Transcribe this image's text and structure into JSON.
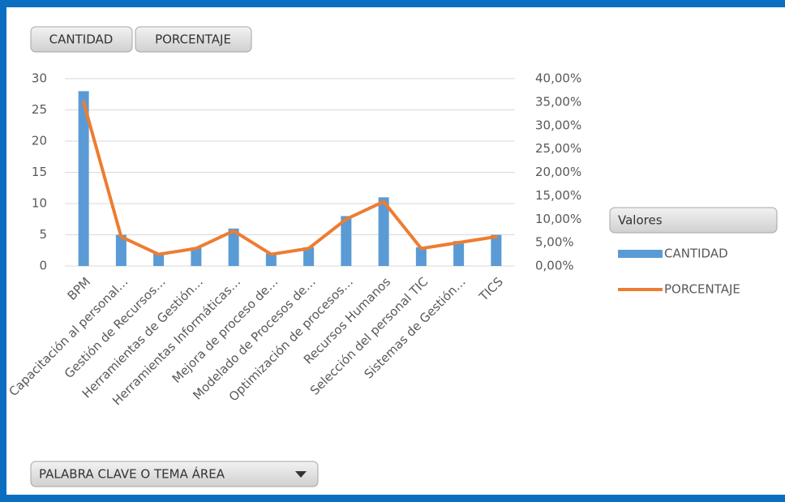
{
  "chart_data": {
    "type": "bar",
    "field_buttons": [
      "CANTIDAD",
      "PORCENTAJE"
    ],
    "axis_field_button": "PALABRA CLAVE O TEMA ÁREA",
    "legend_title": "Valores",
    "categories": [
      "BPM",
      "Capacitación al personal…",
      "Gestión de Recursos…",
      "Herramientas de Gestión…",
      "Herramientas Informáticas…",
      "Mejora de proceso de…",
      "Modelado de Procesos de…",
      "Optimización de procesos…",
      "Recursos Humanos",
      "Selección del personal TIC",
      "Sistemas de Gestión…",
      "TICS"
    ],
    "series": [
      {
        "name": "CANTIDAD",
        "color": "#5b9bd5",
        "values": [
          28,
          5,
          2,
          3,
          6,
          2,
          3,
          8,
          11,
          3,
          4,
          5
        ]
      },
      {
        "name": "PORCENTAJE",
        "type": "line",
        "axis": "y2",
        "color": "#ed7d31",
        "values": [
          35,
          6.25,
          2.5,
          3.75,
          7.5,
          2.5,
          3.75,
          10,
          13.75,
          3.75,
          5,
          6.25
        ]
      }
    ],
    "ylim": [
      0,
      30
    ],
    "yticks": [
      0,
      5,
      10,
      15,
      20,
      25,
      30
    ],
    "y2lim": [
      0,
      40
    ],
    "y2ticks": [
      {
        "value": 0,
        "label": "0,00%"
      },
      {
        "value": 5,
        "label": "5,00%"
      },
      {
        "value": 10,
        "label": "10,00%"
      },
      {
        "value": 15,
        "label": "15,00%"
      },
      {
        "value": 20,
        "label": "20,00%"
      },
      {
        "value": 25,
        "label": "25,00%"
      },
      {
        "value": 30,
        "label": "30,00%"
      },
      {
        "value": 35,
        "label": "35,00%"
      },
      {
        "value": 40,
        "label": "40,00%"
      }
    ],
    "grid": true
  }
}
